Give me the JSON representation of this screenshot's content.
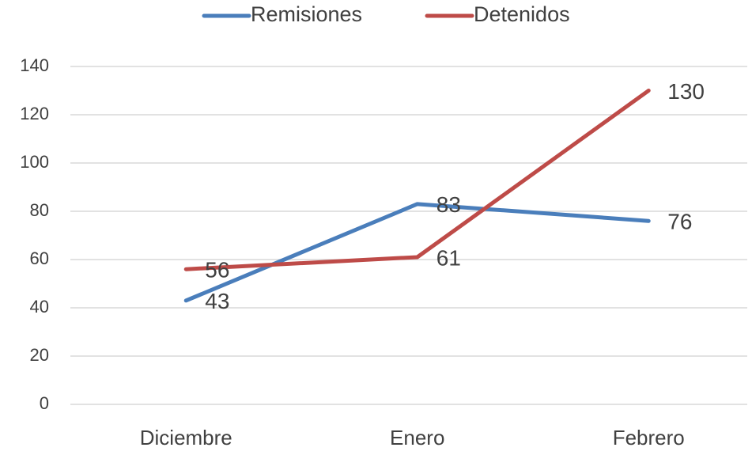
{
  "chart_data": {
    "type": "line",
    "categories": [
      "Diciembre",
      "Enero",
      "Febrero"
    ],
    "series": [
      {
        "name": "Remisiones",
        "color": "#4a7ebb",
        "values": [
          43,
          83,
          76
        ]
      },
      {
        "name": "Detenidos",
        "color": "#be4b48",
        "values": [
          56,
          61,
          130
        ]
      }
    ],
    "ylim": [
      0,
      140
    ],
    "yticks": [
      0,
      20,
      40,
      60,
      80,
      100,
      120,
      140
    ],
    "grid": true,
    "legend": "top"
  }
}
